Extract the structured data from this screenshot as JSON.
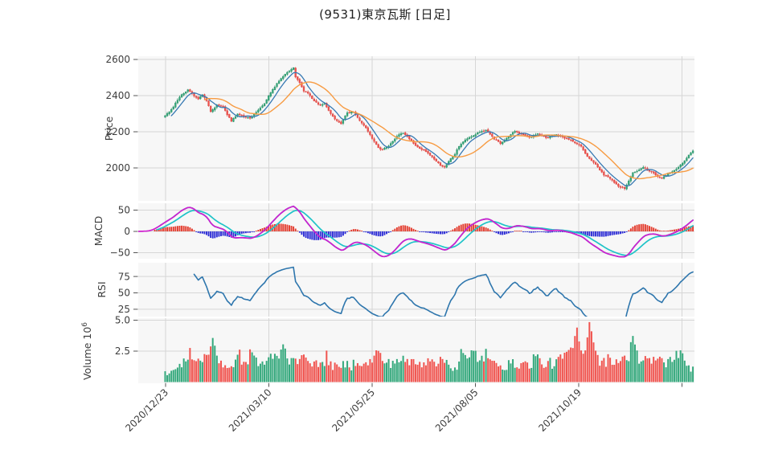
{
  "title": "(9531)東京瓦斯 [日足]",
  "chart_data": {
    "type": "candlestick",
    "symbol_code": "9531",
    "symbol_name": "東京瓦斯",
    "timeframe": "日足",
    "x_tick_labels": [
      "2020/12/23",
      "2021/03/10",
      "2021/05/25",
      "2021/08/05",
      "2021/10/19"
    ],
    "panels": {
      "price": {
        "label": "Price",
        "ticks": [
          {
            "v": 2600,
            "label": "2600"
          },
          {
            "v": 2400,
            "label": "2400"
          },
          {
            "v": 2200,
            "label": "2200"
          },
          {
            "v": 2000,
            "label": "2000"
          }
        ],
        "series": [
          "candlestick",
          "ma-short",
          "ma-long"
        ]
      },
      "macd": {
        "label": "MACD",
        "ticks": [
          {
            "v": 50,
            "label": "50"
          },
          {
            "v": 0,
            "label": "0"
          },
          {
            "v": -50,
            "label": "−50"
          }
        ],
        "series": [
          "macd-line",
          "signal-line",
          "histogram"
        ]
      },
      "rsi": {
        "label": "RSI",
        "ticks": [
          {
            "v": 75,
            "label": "75"
          },
          {
            "v": 50,
            "label": "50"
          },
          {
            "v": 25,
            "label": "25"
          }
        ],
        "series": [
          "rsi-line"
        ]
      },
      "volume": {
        "label": "Volume",
        "unit_base": "10",
        "unit_exp": "6",
        "ticks": [
          {
            "v": 5.0,
            "label": "5.0"
          },
          {
            "v": 2.5,
            "label": "2.5"
          }
        ],
        "series": [
          "volume-bars"
        ]
      }
    },
    "bars": 269,
    "candle_start_index": 13,
    "ma_short_start_index": 16,
    "ma_long_start_index": 32,
    "hist_start_index": 8,
    "signal_start_index": 9,
    "rsi_start_index": 27,
    "indicator_params": {
      "ma_short": 7,
      "ma_long": 20,
      "macd": [
        12,
        26,
        9
      ],
      "rsi": 14
    },
    "close_waypoints": [
      [
        0,
        2190
      ],
      [
        4,
        2195
      ],
      [
        7,
        2215
      ],
      [
        10,
        2255
      ],
      [
        13,
        2290
      ],
      [
        15,
        2310
      ],
      [
        17,
        2340
      ],
      [
        19,
        2375
      ],
      [
        21,
        2405
      ],
      [
        24,
        2435
      ],
      [
        26,
        2410
      ],
      [
        29,
        2380
      ],
      [
        31,
        2405
      ],
      [
        33,
        2370
      ],
      [
        35,
        2310
      ],
      [
        38,
        2350
      ],
      [
        41,
        2340
      ],
      [
        43,
        2295
      ],
      [
        45,
        2260
      ],
      [
        48,
        2298
      ],
      [
        51,
        2285
      ],
      [
        54,
        2278
      ],
      [
        57,
        2310
      ],
      [
        61,
        2360
      ],
      [
        63,
        2400
      ],
      [
        67,
        2465
      ],
      [
        71,
        2520
      ],
      [
        74,
        2545
      ],
      [
        75,
        2552
      ],
      [
        76,
        2505
      ],
      [
        78,
        2470
      ],
      [
        80,
        2425
      ],
      [
        83,
        2400
      ],
      [
        85,
        2370
      ],
      [
        88,
        2345
      ],
      [
        90,
        2352
      ],
      [
        92,
        2320
      ],
      [
        95,
        2268
      ],
      [
        98,
        2242
      ],
      [
        101,
        2305
      ],
      [
        104,
        2310
      ],
      [
        107,
        2262
      ],
      [
        110,
        2225
      ],
      [
        113,
        2160
      ],
      [
        116,
        2115
      ],
      [
        118,
        2100
      ],
      [
        121,
        2125
      ],
      [
        123,
        2150
      ],
      [
        126,
        2185
      ],
      [
        128,
        2196
      ],
      [
        131,
        2160
      ],
      [
        134,
        2125
      ],
      [
        137,
        2105
      ],
      [
        140,
        2085
      ],
      [
        143,
        2050
      ],
      [
        146,
        2018
      ],
      [
        148,
        2008
      ],
      [
        150,
        2040
      ],
      [
        153,
        2075
      ],
      [
        155,
        2120
      ],
      [
        158,
        2152
      ],
      [
        162,
        2180
      ],
      [
        165,
        2200
      ],
      [
        168,
        2212
      ],
      [
        172,
        2162
      ],
      [
        175,
        2132
      ],
      [
        178,
        2160
      ],
      [
        182,
        2202
      ],
      [
        186,
        2185
      ],
      [
        189,
        2170
      ],
      [
        193,
        2190
      ],
      [
        197,
        2165
      ],
      [
        202,
        2185
      ],
      [
        205,
        2172
      ],
      [
        208,
        2155
      ],
      [
        210,
        2148
      ],
      [
        214,
        2122
      ],
      [
        216,
        2082
      ],
      [
        218,
        2052
      ],
      [
        221,
        2022
      ],
      [
        223,
        1992
      ],
      [
        225,
        1962
      ],
      [
        228,
        1942
      ],
      [
        230,
        1922
      ],
      [
        232,
        1902
      ],
      [
        235,
        1888
      ],
      [
        237,
        1932
      ],
      [
        239,
        1972
      ],
      [
        242,
        1992
      ],
      [
        244,
        2008
      ],
      [
        246,
        1988
      ],
      [
        249,
        1972
      ],
      [
        251,
        1952
      ],
      [
        253,
        1940
      ],
      [
        256,
        1968
      ],
      [
        259,
        1988
      ],
      [
        261,
        2002
      ],
      [
        263,
        2028
      ],
      [
        265,
        2058
      ],
      [
        267,
        2082
      ],
      [
        268,
        2090
      ]
    ],
    "volume_waypoints": [
      [
        13,
        0.7
      ],
      [
        18,
        1.0
      ],
      [
        22,
        1.5
      ],
      [
        25,
        2.7
      ],
      [
        28,
        1.6
      ],
      [
        31,
        1.9
      ],
      [
        34,
        2.3
      ],
      [
        36,
        3.6
      ],
      [
        38,
        2.0
      ],
      [
        41,
        1.5
      ],
      [
        44,
        1.1
      ],
      [
        47,
        1.6
      ],
      [
        49,
        2.2
      ],
      [
        52,
        1.3
      ],
      [
        55,
        2.5
      ],
      [
        58,
        1.4
      ],
      [
        61,
        1.6
      ],
      [
        64,
        1.9
      ],
      [
        67,
        2.0
      ],
      [
        70,
        3.0
      ],
      [
        73,
        1.9
      ],
      [
        76,
        2.1
      ],
      [
        79,
        1.7
      ],
      [
        82,
        2.1
      ],
      [
        85,
        1.5
      ],
      [
        88,
        1.3
      ],
      [
        91,
        2.0
      ],
      [
        94,
        1.3
      ],
      [
        97,
        1.1
      ],
      [
        100,
        1.5
      ],
      [
        103,
        1.3
      ],
      [
        106,
        1.9
      ],
      [
        109,
        1.3
      ],
      [
        112,
        1.6
      ],
      [
        115,
        2.5
      ],
      [
        118,
        1.8
      ],
      [
        121,
        1.5
      ],
      [
        124,
        1.7
      ],
      [
        127,
        1.9
      ],
      [
        130,
        1.5
      ],
      [
        133,
        1.7
      ],
      [
        136,
        1.4
      ],
      [
        139,
        1.8
      ],
      [
        142,
        2.1
      ],
      [
        145,
        1.5
      ],
      [
        148,
        1.8
      ],
      [
        151,
        1.3
      ],
      [
        154,
        1.1
      ],
      [
        156,
        2.6
      ],
      [
        159,
        1.6
      ],
      [
        162,
        2.5
      ],
      [
        165,
        1.8
      ],
      [
        168,
        2.2
      ],
      [
        171,
        1.4
      ],
      [
        174,
        1.7
      ],
      [
        177,
        1.2
      ],
      [
        180,
        1.5
      ],
      [
        183,
        1.4
      ],
      [
        186,
        1.6
      ],
      [
        189,
        1.2
      ],
      [
        192,
        2.3
      ],
      [
        195,
        1.3
      ],
      [
        198,
        1.6
      ],
      [
        201,
        1.4
      ],
      [
        204,
        1.8
      ],
      [
        207,
        2.4
      ],
      [
        210,
        2.8
      ],
      [
        212,
        4.4
      ],
      [
        214,
        2.2
      ],
      [
        216,
        2.6
      ],
      [
        218,
        4.9
      ],
      [
        220,
        3.3
      ],
      [
        222,
        1.9
      ],
      [
        225,
        1.6
      ],
      [
        228,
        1.9
      ],
      [
        231,
        1.7
      ],
      [
        234,
        2.1
      ],
      [
        236,
        1.5
      ],
      [
        239,
        3.9
      ],
      [
        242,
        1.6
      ],
      [
        245,
        1.9
      ],
      [
        248,
        1.4
      ],
      [
        251,
        2.2
      ],
      [
        254,
        1.5
      ],
      [
        257,
        1.7
      ],
      [
        260,
        2.5
      ],
      [
        263,
        1.9
      ],
      [
        265,
        1.4
      ],
      [
        267,
        1.1
      ],
      [
        268,
        1.2
      ]
    ],
    "colors": {
      "up": "#34a87c",
      "up_edge": "#2b8f66",
      "down": "#f0544f",
      "down_edge": "#d9423e",
      "ma_short": "#3779b3",
      "ma_long": "#f79b42",
      "macd_line": "#cf1ecf",
      "signal_line": "#1fc3c8",
      "hist_pos": "#e33a2c",
      "hist_neg": "#2b2bd5",
      "rsi_line": "#2e76ad",
      "grid": "#d6d6d6",
      "panel_bg": "#f7f7f7",
      "text": "#3d3d3d",
      "tick": "#555555"
    }
  }
}
